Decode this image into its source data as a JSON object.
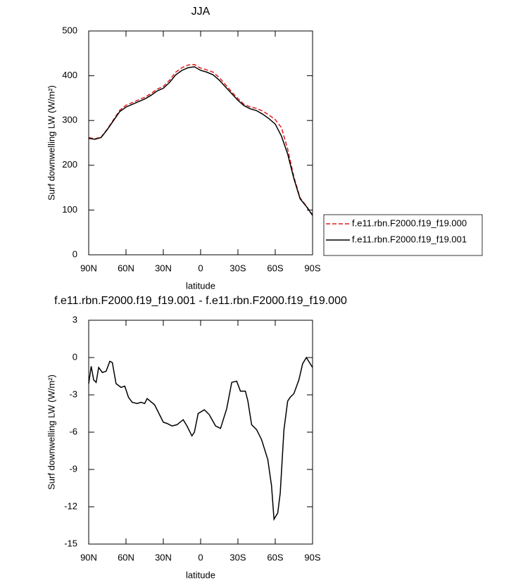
{
  "chart_data": [
    {
      "type": "line",
      "title": "JJA",
      "xlabel": "latitude",
      "ylabel": "Surf downwelling LW (W/m²)",
      "x": [
        90,
        85,
        80,
        75,
        70,
        65,
        60,
        55,
        50,
        45,
        40,
        35,
        30,
        25,
        20,
        15,
        10,
        5,
        0,
        -5,
        -10,
        -15,
        -20,
        -25,
        -30,
        -35,
        -40,
        -45,
        -50,
        -55,
        -60,
        -65,
        -70,
        -75,
        -80,
        -85,
        -90
      ],
      "series": [
        {
          "name": "f.e11.rbn.F2000.f19_f19.000",
          "color": "#e31a1c",
          "line_style": "dashed",
          "values": [
            262,
            259,
            263,
            281,
            302,
            323,
            334,
            340,
            346,
            352,
            360,
            370,
            376,
            390,
            408,
            418,
            424,
            425,
            417,
            413,
            408,
            396,
            380,
            364,
            349,
            336,
            330,
            327,
            321,
            312,
            302,
            284,
            236,
            174,
            127,
            109,
            89
          ]
        },
        {
          "name": "f.e11.rbn.F2000.f19_f19.001",
          "color": "#000000",
          "line_style": "solid",
          "values": [
            260,
            258,
            262,
            280,
            300,
            320,
            330,
            336,
            342,
            348,
            356,
            366,
            372,
            385,
            402,
            412,
            418,
            420,
            412,
            408,
            402,
            390,
            375,
            360,
            345,
            333,
            326,
            322,
            314,
            304,
            292,
            265,
            225,
            170,
            125,
            108,
            88
          ]
        }
      ],
      "xlim": [
        90,
        -90
      ],
      "xticks": [
        {
          "value": 90,
          "label": "90N"
        },
        {
          "value": 60,
          "label": "60N"
        },
        {
          "value": 30,
          "label": "30N"
        },
        0,
        {
          "value": -30,
          "label": "30S"
        },
        {
          "value": -60,
          "label": "60S"
        },
        {
          "value": -90,
          "label": "90S"
        }
      ],
      "ylim": [
        0,
        500
      ],
      "yticks": [
        0,
        100,
        200,
        300,
        400,
        500
      ],
      "legend": "right"
    },
    {
      "type": "line",
      "title": "f.e11.rbn.F2000.f19_f19.001 - f.e11.rbn.F2000.f19_f19.000",
      "xlabel": "latitude",
      "ylabel": "Surf downwelling LW (W/m²)",
      "x": [
        90,
        88,
        86,
        84,
        82,
        79,
        76,
        73,
        71,
        68,
        64,
        61,
        58,
        55,
        51,
        48,
        45,
        43,
        37,
        30,
        27,
        23,
        19,
        14,
        11,
        7,
        5,
        2,
        -3,
        -7,
        -12,
        -16,
        -21,
        -25,
        -29,
        -32,
        -36,
        -38,
        -41,
        -45,
        -49,
        -54,
        -57,
        -59,
        -62,
        -64,
        -67,
        -70,
        -72,
        -75,
        -79,
        -82,
        -85,
        -90
      ],
      "series": [
        {
          "name": null,
          "color": "#000000",
          "line_style": "solid",
          "values": [
            -2.1,
            -0.7,
            -1.8,
            -2.0,
            -0.8,
            -1.2,
            -1.1,
            -0.3,
            -0.4,
            -2.1,
            -2.4,
            -2.3,
            -3.2,
            -3.6,
            -3.7,
            -3.6,
            -3.7,
            -3.3,
            -3.8,
            -5.2,
            -5.3,
            -5.5,
            -5.4,
            -5.0,
            -5.5,
            -6.3,
            -6.0,
            -4.5,
            -4.2,
            -4.6,
            -5.5,
            -5.7,
            -4.1,
            -2.0,
            -1.9,
            -2.7,
            -2.7,
            -3.5,
            -5.4,
            -5.8,
            -6.6,
            -8.2,
            -10.3,
            -13.0,
            -12.5,
            -10.9,
            -5.8,
            -3.5,
            -3.2,
            -2.9,
            -1.8,
            -0.5,
            0,
            -0.8
          ]
        }
      ],
      "xlim": [
        90,
        -90
      ],
      "xticks": [
        {
          "value": 90,
          "label": "90N"
        },
        {
          "value": 60,
          "label": "60N"
        },
        {
          "value": 30,
          "label": "30N"
        },
        0,
        {
          "value": -30,
          "label": "30S"
        },
        {
          "value": -60,
          "label": "60S"
        },
        {
          "value": -90,
          "label": "90S"
        }
      ],
      "ylim": [
        -15,
        3
      ],
      "yticks": [
        -15,
        -12,
        -9,
        -6,
        -3,
        0,
        3
      ]
    }
  ]
}
